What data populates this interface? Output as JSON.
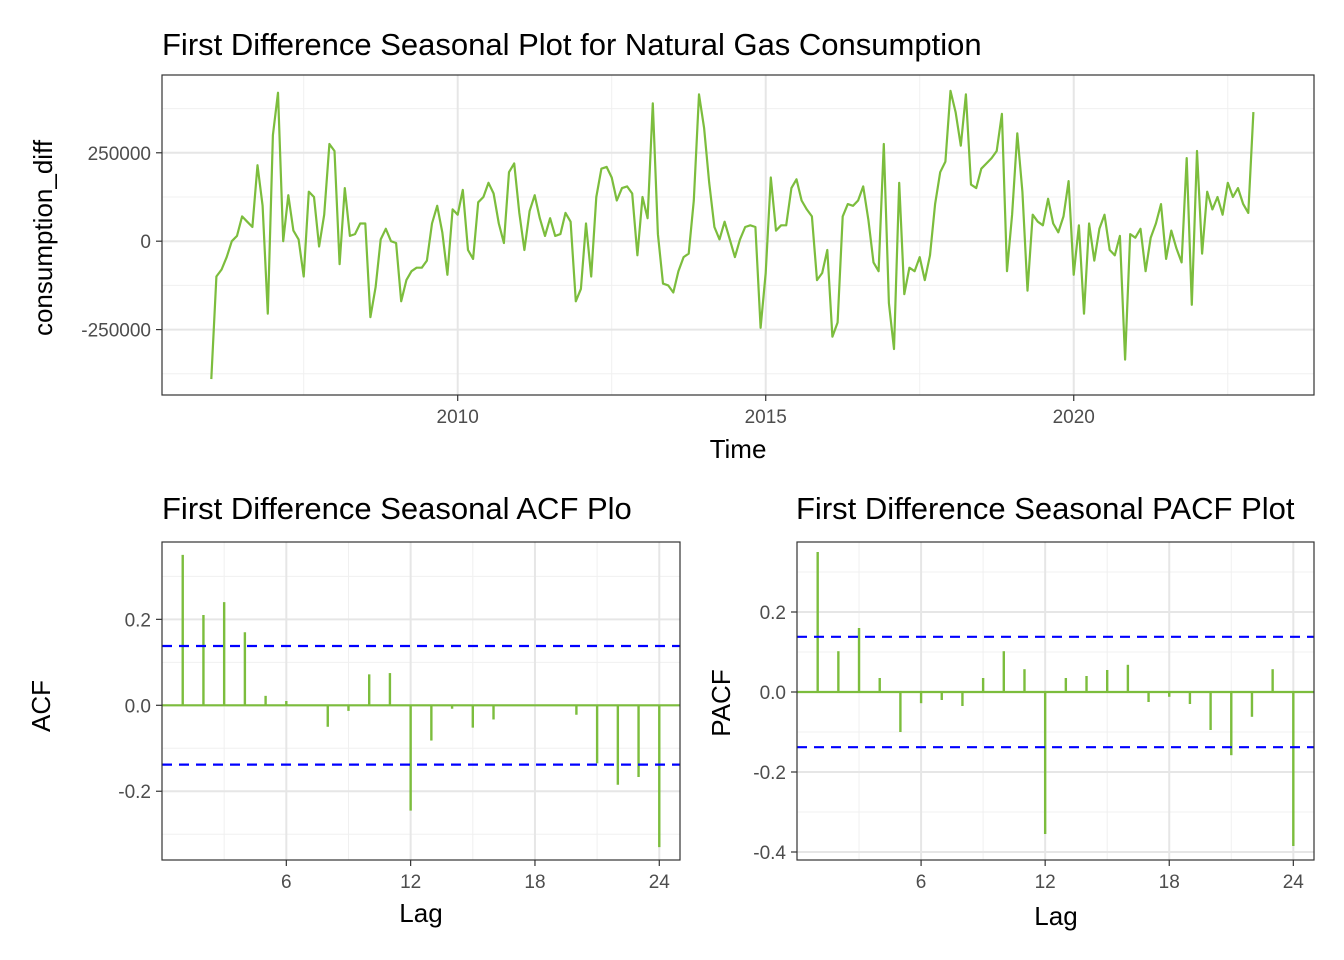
{
  "colors": {
    "series": "#7cbd3d",
    "ci": "#0000ff"
  },
  "chart_data": [
    {
      "type": "line",
      "title": "First Difference Seasonal Plot for Natural Gas Consumption",
      "xlabel": "Time",
      "ylabel": "consumption_diff",
      "xlim": [
        2005.2,
        2023.9
      ],
      "ylim": [
        -435000,
        470000
      ],
      "x_ticks": [
        {
          "v": 2010,
          "label": "2010"
        },
        {
          "v": 2015,
          "label": "2015"
        },
        {
          "v": 2020,
          "label": "2020"
        }
      ],
      "y_ticks": [
        {
          "v": 250000,
          "label": "250000"
        },
        {
          "v": 0,
          "label": "0"
        },
        {
          "v": -250000,
          "label": "-250000"
        }
      ],
      "x": [
        2006.0,
        2006.083,
        2006.167,
        2006.25,
        2006.333,
        2006.417,
        2006.5,
        2006.583,
        2006.667,
        2006.75,
        2006.833,
        2006.917,
        2007.0,
        2007.083,
        2007.167,
        2007.25,
        2007.333,
        2007.417,
        2007.5,
        2007.583,
        2007.667,
        2007.75,
        2007.833,
        2007.917,
        2008.0,
        2008.083,
        2008.167,
        2008.25,
        2008.333,
        2008.417,
        2008.5,
        2008.583,
        2008.667,
        2008.75,
        2008.833,
        2008.917,
        2009.0,
        2009.083,
        2009.167,
        2009.25,
        2009.333,
        2009.417,
        2009.5,
        2009.583,
        2009.667,
        2009.75,
        2009.833,
        2009.917,
        2010.0,
        2010.083,
        2010.167,
        2010.25,
        2010.333,
        2010.417,
        2010.5,
        2010.583,
        2010.667,
        2010.75,
        2010.833,
        2010.917,
        2011.0,
        2011.083,
        2011.167,
        2011.25,
        2011.333,
        2011.417,
        2011.5,
        2011.583,
        2011.667,
        2011.75,
        2011.833,
        2011.917,
        2012.0,
        2012.083,
        2012.167,
        2012.25,
        2012.333,
        2012.417,
        2012.5,
        2012.583,
        2012.667,
        2012.75,
        2012.833,
        2012.917,
        2013.0,
        2013.083,
        2013.167,
        2013.25,
        2013.333,
        2013.417,
        2013.5,
        2013.583,
        2013.667,
        2013.75,
        2013.833,
        2013.917,
        2014.0,
        2014.083,
        2014.167,
        2014.25,
        2014.333,
        2014.417,
        2014.5,
        2014.583,
        2014.667,
        2014.75,
        2014.833,
        2014.917,
        2015.0,
        2015.083,
        2015.167,
        2015.25,
        2015.333,
        2015.417,
        2015.5,
        2015.583,
        2015.667,
        2015.75,
        2015.833,
        2015.917,
        2016.0,
        2016.083,
        2016.167,
        2016.25,
        2016.333,
        2016.417,
        2016.5,
        2016.583,
        2016.667,
        2016.75,
        2016.833,
        2016.917,
        2017.0,
        2017.083,
        2017.167,
        2017.25,
        2017.333,
        2017.417,
        2017.5,
        2017.583,
        2017.667,
        2017.75,
        2017.833,
        2017.917,
        2018.0,
        2018.083,
        2018.167,
        2018.25,
        2018.333,
        2018.417,
        2018.5,
        2018.583,
        2018.667,
        2018.75,
        2018.833,
        2018.917,
        2019.0,
        2019.083,
        2019.167,
        2019.25,
        2019.333,
        2019.417,
        2019.5,
        2019.583,
        2019.667,
        2019.75,
        2019.833,
        2019.917,
        2020.0,
        2020.083,
        2020.167,
        2020.25,
        2020.333,
        2020.417,
        2020.5,
        2020.583,
        2020.667,
        2020.75,
        2020.833,
        2020.917,
        2021.0,
        2021.083,
        2021.167,
        2021.25,
        2021.333,
        2021.417,
        2021.5,
        2021.583,
        2021.667,
        2021.75,
        2021.833,
        2021.917,
        2022.0,
        2022.083,
        2022.167,
        2022.25,
        2022.333,
        2022.417,
        2022.5,
        2022.583,
        2022.667,
        2022.75,
        2022.833,
        2022.917
      ],
      "values": [
        -390000,
        -100000,
        -80000,
        -45000,
        0,
        15000,
        70000,
        55000,
        40000,
        215000,
        100000,
        -205000,
        300000,
        420000,
        0,
        130000,
        30000,
        5000,
        -100000,
        140000,
        125000,
        -15000,
        75000,
        275000,
        255000,
        -65000,
        150000,
        15000,
        20000,
        50000,
        50000,
        -215000,
        -130000,
        5000,
        35000,
        0,
        -5000,
        -170000,
        -110000,
        -85000,
        -75000,
        -75000,
        -55000,
        50000,
        100000,
        25000,
        -95000,
        90000,
        75000,
        145000,
        -25000,
        -50000,
        110000,
        125000,
        165000,
        135000,
        50000,
        -5000,
        195000,
        220000,
        80000,
        -25000,
        85000,
        130000,
        65000,
        15000,
        65000,
        15000,
        20000,
        80000,
        55000,
        -170000,
        -135000,
        50000,
        -100000,
        125000,
        205000,
        210000,
        180000,
        115000,
        150000,
        155000,
        135000,
        -40000,
        125000,
        65000,
        390000,
        20000,
        -120000,
        -125000,
        -145000,
        -85000,
        -45000,
        -35000,
        115000,
        415000,
        320000,
        165000,
        40000,
        5000,
        55000,
        5000,
        -45000,
        5000,
        40000,
        45000,
        40000,
        -245000,
        -90000,
        180000,
        30000,
        45000,
        45000,
        150000,
        175000,
        115000,
        90000,
        70000,
        -110000,
        -90000,
        -25000,
        -270000,
        -230000,
        70000,
        105000,
        100000,
        115000,
        155000,
        60000,
        -60000,
        -85000,
        275000,
        -175000,
        -305000,
        165000,
        -150000,
        -75000,
        -85000,
        -45000,
        -110000,
        -40000,
        105000,
        195000,
        225000,
        425000,
        365000,
        270000,
        415000,
        160000,
        150000,
        205000,
        220000,
        235000,
        255000,
        360000,
        -85000,
        75000,
        305000,
        140000,
        -140000,
        75000,
        55000,
        45000,
        120000,
        50000,
        25000,
        70000,
        170000,
        -95000,
        45000,
        -205000,
        50000,
        -55000,
        35000,
        75000,
        -25000,
        -40000,
        15000,
        -335000,
        20000,
        10000,
        35000,
        -85000,
        10000,
        50000,
        105000,
        -50000,
        30000,
        -20000,
        -60000,
        235000,
        -180000,
        255000,
        -35000,
        140000,
        90000,
        125000,
        75000,
        165000,
        125000,
        150000,
        105000,
        80000,
        365000
      ]
    },
    {
      "type": "bar",
      "title": "First Difference Seasonal ACF Plo",
      "xlabel": "Lag",
      "ylabel": "ACF",
      "xlim": [
        0,
        25
      ],
      "ylim": [
        -0.36,
        0.38
      ],
      "ci": 0.138,
      "x_ticks": [
        {
          "v": 6,
          "label": "6"
        },
        {
          "v": 12,
          "label": "12"
        },
        {
          "v": 18,
          "label": "18"
        },
        {
          "v": 24,
          "label": "24"
        }
      ],
      "y_ticks": [
        {
          "v": 0.2,
          "label": "0.2"
        },
        {
          "v": 0.0,
          "label": "0.0"
        },
        {
          "v": -0.2,
          "label": "-0.2"
        }
      ],
      "lags": [
        1,
        2,
        3,
        4,
        5,
        6,
        7,
        8,
        9,
        10,
        11,
        12,
        13,
        14,
        15,
        16,
        17,
        18,
        19,
        20,
        21,
        22,
        23,
        24
      ],
      "values": [
        0.35,
        0.21,
        0.24,
        0.17,
        0.022,
        0.01,
        0.0,
        -0.05,
        -0.013,
        0.072,
        0.075,
        -0.245,
        -0.082,
        -0.008,
        -0.052,
        -0.033,
        0.0,
        0.0,
        0.0,
        -0.022,
        -0.135,
        -0.185,
        -0.167,
        -0.33
      ]
    },
    {
      "type": "bar",
      "title": "First Difference Seasonal PACF Plot",
      "xlabel": "Lag",
      "ylabel": "PACF",
      "xlim": [
        0,
        25
      ],
      "ylim": [
        -0.42,
        0.375
      ],
      "ci": 0.138,
      "x_ticks": [
        {
          "v": 6,
          "label": "6"
        },
        {
          "v": 12,
          "label": "12"
        },
        {
          "v": 18,
          "label": "18"
        },
        {
          "v": 24,
          "label": "24"
        }
      ],
      "y_ticks": [
        {
          "v": 0.2,
          "label": "0.2"
        },
        {
          "v": 0.0,
          "label": "0.0"
        },
        {
          "v": -0.2,
          "label": "-0.2"
        },
        {
          "v": -0.4,
          "label": "-0.4"
        }
      ],
      "lags": [
        1,
        2,
        3,
        4,
        5,
        6,
        7,
        8,
        9,
        10,
        11,
        12,
        13,
        14,
        15,
        16,
        17,
        18,
        19,
        20,
        21,
        22,
        23,
        24
      ],
      "values": [
        0.35,
        0.102,
        0.16,
        0.035,
        -0.1,
        -0.028,
        -0.02,
        -0.035,
        0.035,
        0.102,
        0.057,
        -0.355,
        0.035,
        0.04,
        0.055,
        0.068,
        -0.025,
        -0.012,
        -0.03,
        -0.095,
        -0.158,
        -0.062,
        0.057,
        -0.385
      ]
    }
  ]
}
